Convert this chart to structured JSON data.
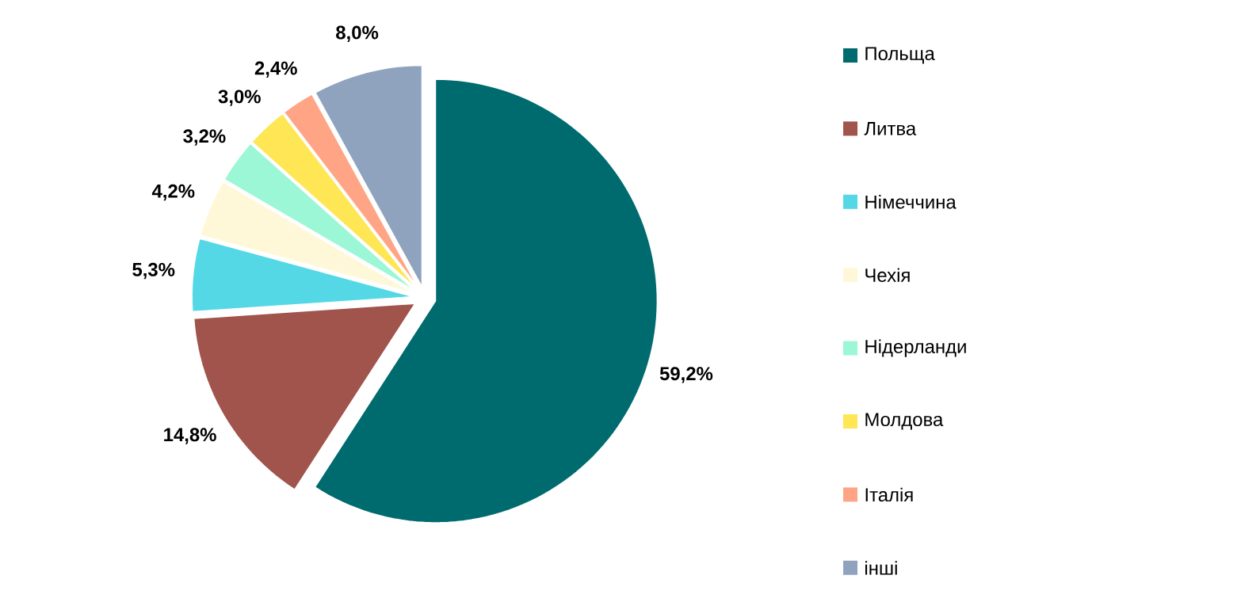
{
  "chart_data": {
    "type": "pie",
    "categories": [
      "Польща",
      "Литва",
      "Німеччина",
      "Чехія",
      "Нідерланди",
      "Молдова",
      "Італія",
      "інші"
    ],
    "values": [
      59.2,
      14.8,
      5.3,
      4.2,
      3.2,
      3.0,
      2.4,
      8.0
    ],
    "colors": [
      "#006B6F",
      "#A0544B",
      "#55D8E6",
      "#FFF8D8",
      "#9CF7D6",
      "#FFE655",
      "#FFA585",
      "#8FA3BF"
    ],
    "value_labels": [
      "59,2%",
      "14,8%",
      "5,3%",
      "4,2%",
      "3,2%",
      "3,0%",
      "2,4%",
      "8,0%"
    ],
    "legend": "right"
  }
}
